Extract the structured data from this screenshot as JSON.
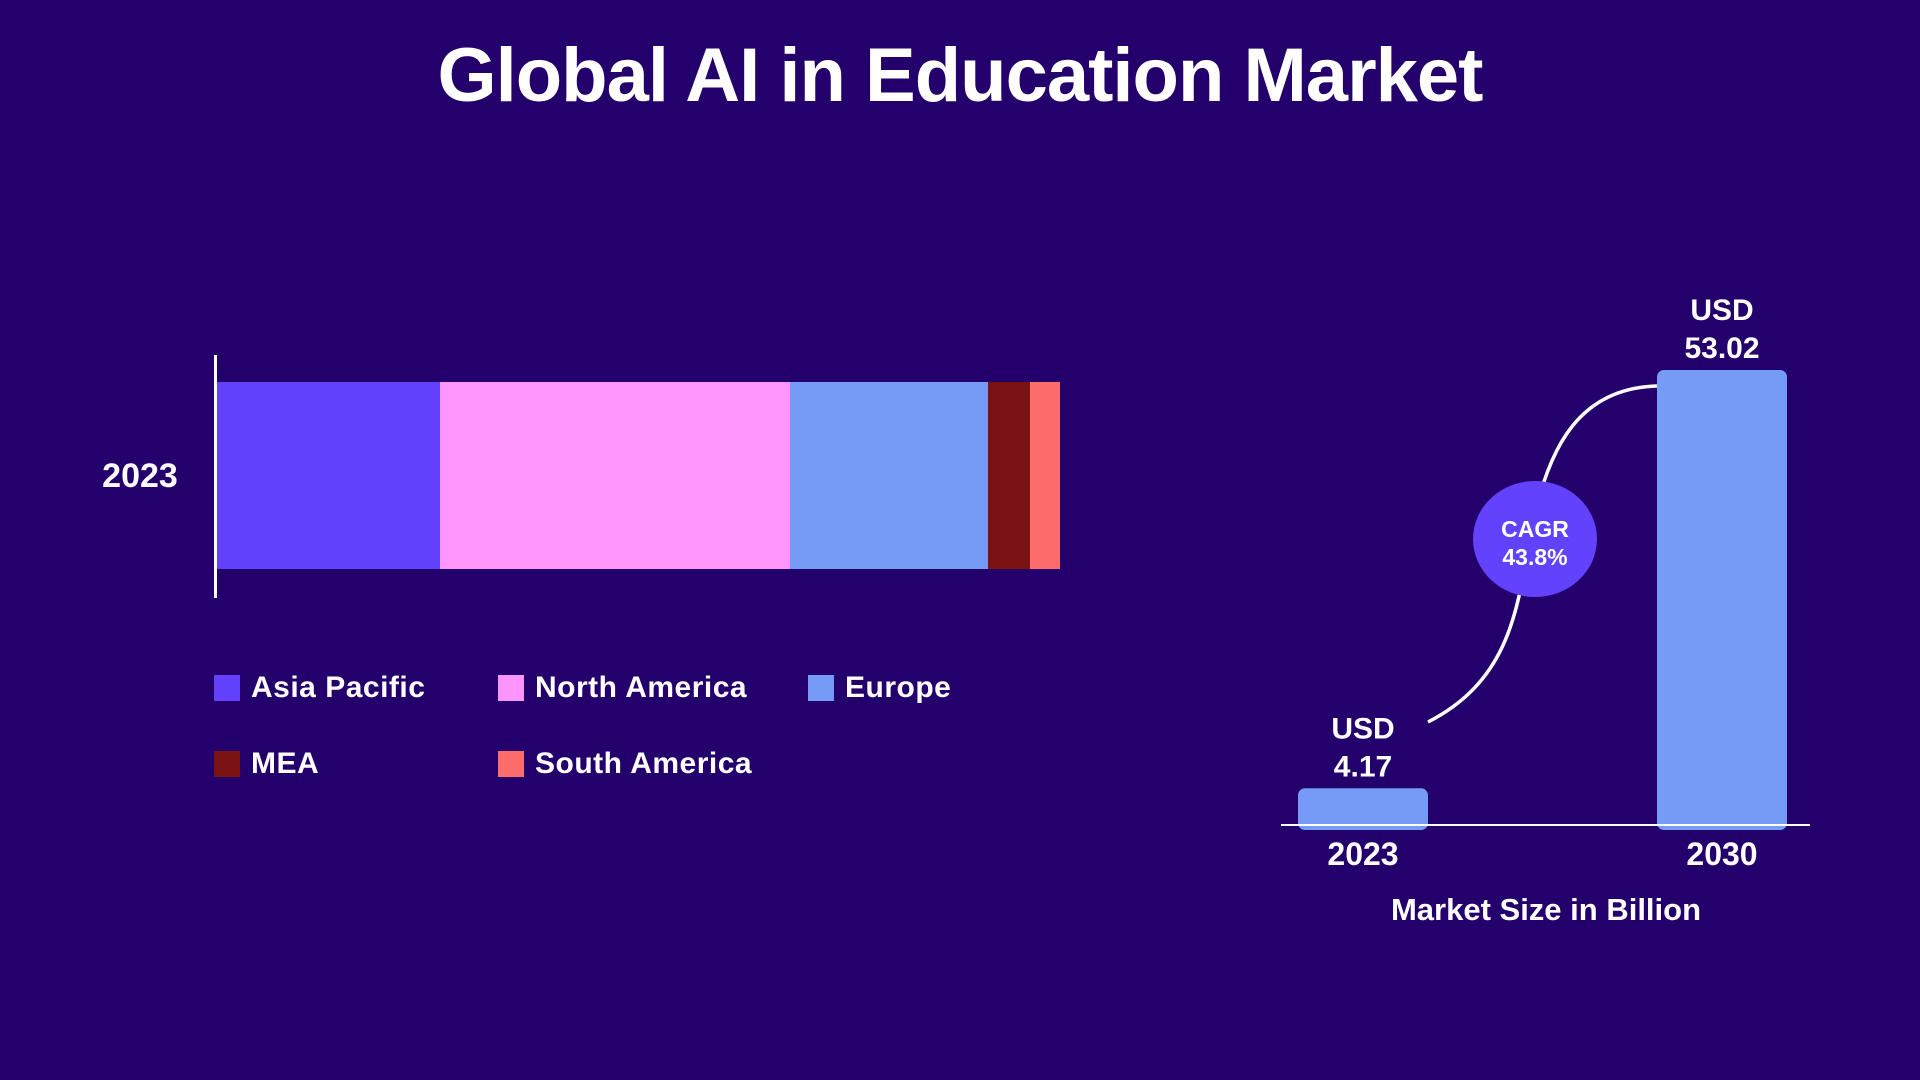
{
  "title": "Global AI in Education Market",
  "chart_data": [
    {
      "type": "bar",
      "stacked": true,
      "orientation": "horizontal",
      "categories": [
        "2023"
      ],
      "series": [
        {
          "name": "Asia Pacific",
          "values": [
            26.5
          ],
          "color": "#6242fd"
        },
        {
          "name": "North America",
          "values": [
            41.5
          ],
          "color": "#fe95fd"
        },
        {
          "name": "Europe",
          "values": [
            23.5
          ],
          "color": "#759bf6"
        },
        {
          "name": "MEA",
          "values": [
            5
          ],
          "color": "#7a1214"
        },
        {
          "name": "South America",
          "values": [
            3.5
          ],
          "color": "#fe6c6c"
        }
      ],
      "legend_position": "bottom"
    },
    {
      "type": "bar",
      "categories": [
        "2023",
        "2030"
      ],
      "values": [
        4.17,
        53.02
      ],
      "data_labels": [
        [
          "USD",
          "4.17"
        ],
        [
          "USD",
          "53.02"
        ]
      ],
      "bar_color": "#759bf6",
      "xlabel": "Market Size in Billion",
      "ylim": [
        0,
        53.02
      ],
      "annotation": {
        "lines": [
          "CAGR",
          "43.8%"
        ],
        "color": "#6242fd"
      }
    }
  ]
}
